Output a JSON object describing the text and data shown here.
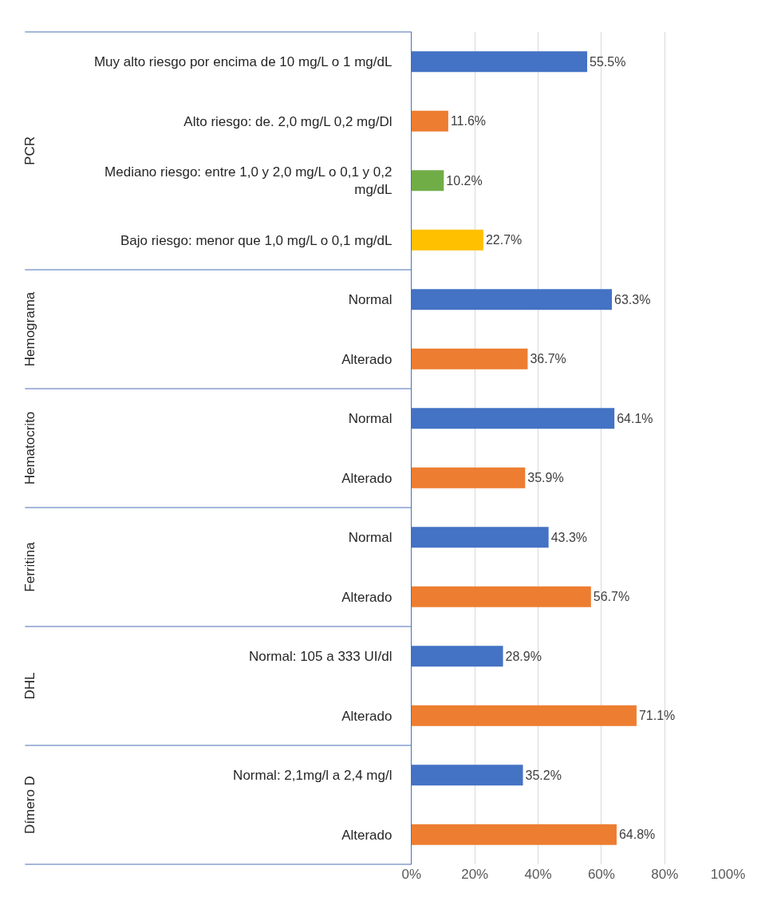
{
  "chart_data": [
    {
      "type": "bar",
      "orientation": "horizontal",
      "ylabel": "PCR",
      "categories": [
        "Muy alto riesgo por encima de 10 mg/L o 1 mg/dL",
        "Alto riesgo: de. 2,0 mg/L 0,2 mg/Dl",
        "Mediano riesgo: entre 1,0 y 2,0 mg/L o 0,1 y 0,2 mg/dL",
        "Bajo riesgo: menor que 1,0 mg/L o 0,1 mg/dL"
      ],
      "values": [
        55.5,
        11.6,
        10.2,
        22.7
      ],
      "colors": [
        "#4472c4",
        "#ed7d31",
        "#70ad47",
        "#ffc000"
      ],
      "value_labels": [
        "55.5%",
        "11.6%",
        "10.2%",
        "22.7%"
      ],
      "xlim": [
        0,
        100
      ],
      "xticks": [
        0,
        20,
        40,
        60,
        80,
        100
      ],
      "grid": "x",
      "tick_labels": "y"
    },
    {
      "type": "bar",
      "orientation": "horizontal",
      "ylabel": "Hemograma",
      "categories": [
        "Normal",
        "Alterado"
      ],
      "values": [
        63.3,
        36.7
      ],
      "colors": [
        "#4472c4",
        "#ed7d31"
      ],
      "value_labels": [
        "63.3%",
        "36.7%"
      ],
      "xlim": [
        0,
        100
      ],
      "xticks": [
        0,
        20,
        40,
        60,
        80,
        100
      ],
      "grid": "x",
      "tick_labels": "y"
    },
    {
      "type": "bar",
      "orientation": "horizontal",
      "ylabel": "Hematocrito",
      "categories": [
        "Normal",
        "Alterado"
      ],
      "values": [
        64.1,
        35.9
      ],
      "colors": [
        "#4472c4",
        "#ed7d31"
      ],
      "value_labels": [
        "64.1%",
        "35.9%"
      ],
      "xlim": [
        0,
        100
      ],
      "xticks": [
        0,
        20,
        40,
        60,
        80,
        100
      ],
      "grid": "x",
      "tick_labels": "y"
    },
    {
      "type": "bar",
      "orientation": "horizontal",
      "ylabel": "Ferritina",
      "categories": [
        "Normal",
        "Alterado"
      ],
      "values": [
        43.3,
        56.7
      ],
      "colors": [
        "#4472c4",
        "#ed7d31"
      ],
      "value_labels": [
        "43.3%",
        "56.7%"
      ],
      "xlim": [
        0,
        100
      ],
      "xticks": [
        0,
        20,
        40,
        60,
        80,
        100
      ],
      "grid": "x",
      "tick_labels": "y"
    },
    {
      "type": "bar",
      "orientation": "horizontal",
      "ylabel": "DHL",
      "categories": [
        "Normal: 105 a 333 UI/dl",
        "Alterado"
      ],
      "values": [
        28.9,
        71.1
      ],
      "colors": [
        "#4472c4",
        "#ed7d31"
      ],
      "value_labels": [
        "28.9%",
        "71.1%"
      ],
      "xlim": [
        0,
        100
      ],
      "xticks": [
        0,
        20,
        40,
        60,
        80,
        100
      ],
      "grid": "x",
      "tick_labels": "y"
    },
    {
      "type": "bar",
      "orientation": "horizontal",
      "ylabel": "Dímero D",
      "categories": [
        "Normal: 2,1mg/l a 2,4 mg/l",
        "Alterado"
      ],
      "values": [
        35.2,
        64.8
      ],
      "colors": [
        "#4472c4",
        "#ed7d31"
      ],
      "value_labels": [
        "35.2%",
        "64.8%"
      ],
      "xlim": [
        0,
        100
      ],
      "xticks": [
        {
          "value": 0,
          "label": "0%"
        },
        {
          "value": 20,
          "label": "20%"
        },
        {
          "value": 40,
          "label": "40%"
        },
        {
          "value": 60,
          "label": "60%"
        },
        {
          "value": 80,
          "label": "80%"
        },
        {
          "value": 100,
          "label": "100%"
        }
      ],
      "grid": "x"
    }
  ]
}
